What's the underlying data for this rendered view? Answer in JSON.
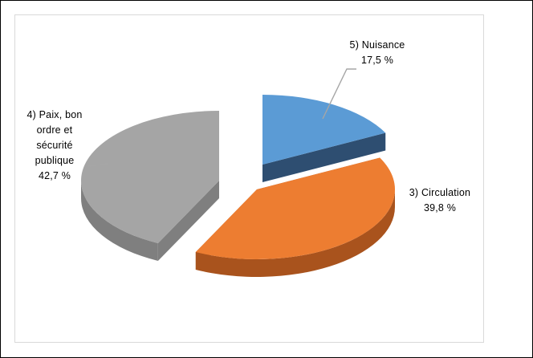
{
  "chart_data": {
    "type": "pie",
    "title": "",
    "slices": [
      {
        "key": "nuisance",
        "label_lines": [
          "5) Nuisance",
          "17,5 %"
        ],
        "value": 17.5,
        "color": "#5B9BD5",
        "side_color": "#2E4E71"
      },
      {
        "key": "circulation",
        "label_lines": [
          "3) Circulation",
          "39,8 %"
        ],
        "value": 39.8,
        "color": "#ED7D31",
        "side_color": "#A9531D"
      },
      {
        "key": "paix",
        "label_lines": [
          "4) Paix, bon",
          "ordre et",
          "sécurité",
          "publique",
          "42,7 %"
        ],
        "value": 42.7,
        "color": "#A5A5A5",
        "side_color": "#7F7F7F"
      }
    ],
    "legend": "none",
    "exploded": true,
    "style": "3d"
  }
}
